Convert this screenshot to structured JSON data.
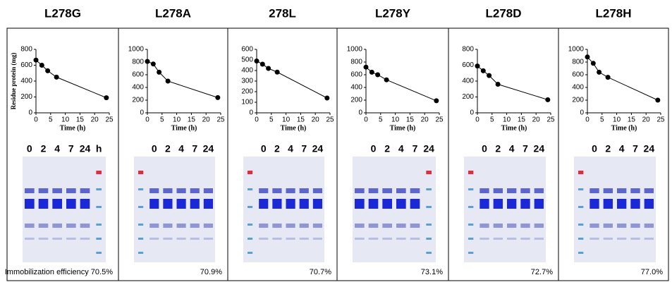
{
  "chart_data": [
    {
      "type": "line",
      "title": "L278G",
      "ylabel": "Residue protein (mg)",
      "xlabel": "Time (h)",
      "x": [
        0,
        2,
        4,
        7,
        24
      ],
      "values": [
        665,
        600,
        530,
        450,
        190
      ],
      "xlim": [
        0,
        25
      ],
      "xticks": [
        0,
        5,
        10,
        15,
        20,
        25
      ],
      "ylim": [
        0,
        800
      ],
      "yticks": [
        0,
        200,
        400,
        600,
        800
      ],
      "lane_labels": [
        "0",
        "2",
        "4",
        "7",
        "24",
        "h"
      ],
      "annotation": "Immobilization efficiency 70.5%"
    },
    {
      "type": "line",
      "title": "L278A",
      "xlabel": "Time (h)",
      "x": [
        0,
        2,
        4,
        7,
        24
      ],
      "values": [
        810,
        770,
        640,
        500,
        240
      ],
      "xlim": [
        0,
        25
      ],
      "xticks": [
        0,
        5,
        10,
        15,
        20,
        25
      ],
      "ylim": [
        0,
        1000
      ],
      "yticks": [
        0,
        200,
        400,
        600,
        800,
        1000
      ],
      "lane_labels": [
        "0",
        "2",
        "4",
        "7",
        "24"
      ],
      "annotation": "70.9%"
    },
    {
      "type": "line",
      "title": "278L",
      "xlabel": "Time (h)",
      "x": [
        0,
        2,
        4,
        7,
        24
      ],
      "values": [
        490,
        460,
        420,
        385,
        140
      ],
      "xlim": [
        0,
        25
      ],
      "xticks": [
        0,
        5,
        10,
        15,
        20,
        25
      ],
      "ylim": [
        0,
        600
      ],
      "yticks": [
        0,
        100,
        200,
        300,
        400,
        500,
        600
      ],
      "lane_labels": [
        "0",
        "2",
        "4",
        "7",
        "24"
      ],
      "annotation": "70.7%"
    },
    {
      "type": "line",
      "title": "L278Y",
      "xlabel": "Time (h)",
      "x": [
        0,
        2,
        4,
        7,
        24
      ],
      "values": [
        720,
        640,
        600,
        520,
        190
      ],
      "xlim": [
        0,
        25
      ],
      "xticks": [
        0,
        5,
        10,
        15,
        20,
        25
      ],
      "ylim": [
        0,
        1000
      ],
      "yticks": [
        0,
        200,
        400,
        600,
        800,
        1000
      ],
      "lane_labels": [
        "0",
        "2",
        "4",
        "7",
        "24"
      ],
      "annotation": "73.1%"
    },
    {
      "type": "line",
      "title": "L278D",
      "xlabel": "Time (h)",
      "x": [
        0,
        2,
        4,
        7,
        24
      ],
      "values": [
        590,
        530,
        470,
        360,
        165
      ],
      "xlim": [
        0,
        25
      ],
      "xticks": [
        0,
        5,
        10,
        15,
        20,
        25
      ],
      "ylim": [
        0,
        800
      ],
      "yticks": [
        0,
        200,
        400,
        600,
        800
      ],
      "lane_labels": [
        "0",
        "2",
        "4",
        "7",
        "24"
      ],
      "annotation": "72.7%"
    },
    {
      "type": "line",
      "title": "L278H",
      "xlabel": "Time (h)",
      "x": [
        0,
        2,
        4,
        7,
        24
      ],
      "values": [
        880,
        780,
        640,
        560,
        200
      ],
      "xlim": [
        0,
        25
      ],
      "xticks": [
        0,
        5,
        10,
        15,
        20,
        25
      ],
      "ylim": [
        0,
        1000
      ],
      "yticks": [
        0,
        200,
        400,
        600,
        800,
        1000
      ],
      "lane_labels": [
        "0",
        "2",
        "4",
        "7",
        "24"
      ],
      "annotation": "77.0%"
    }
  ]
}
